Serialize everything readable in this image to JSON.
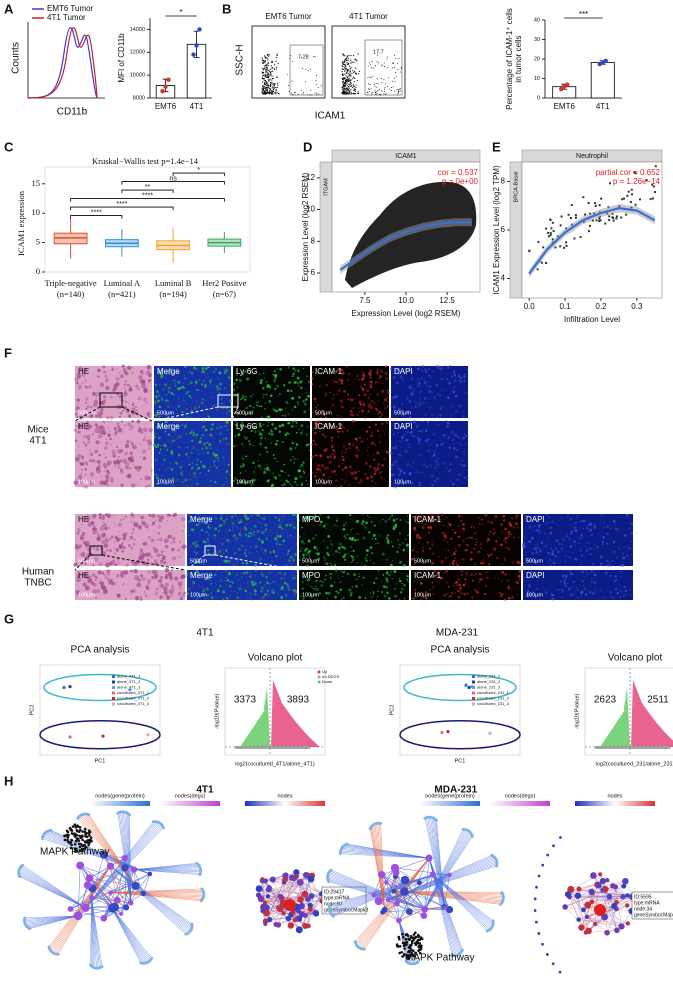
{
  "A": {
    "label": "A",
    "histogram": {
      "legend": [
        {
          "name": "EMT6 Tumor",
          "color": "#3b3bd6"
        },
        {
          "name": "4T1 Tumor",
          "color": "#c4202a"
        }
      ],
      "ylabel": "Counts",
      "xlabel": "CD11b"
    },
    "bar_chart": {
      "type": "bar",
      "ylabel": "MFI of CD11b",
      "categories": [
        "EMT6",
        "4T1"
      ],
      "colors": [
        "#d9332b",
        "#3146c4"
      ],
      "values": [
        9100,
        12700
      ],
      "errors": [
        550,
        1150
      ],
      "points": [
        [
          8600,
          9000,
          9600
        ],
        [
          11800,
          12600,
          14000
        ]
      ],
      "ylim": [
        8000,
        15000
      ],
      "yticks": [
        8000,
        10000,
        12000,
        14000
      ],
      "significance": "*"
    }
  },
  "B": {
    "label": "B",
    "flow": [
      {
        "title": "EMT6 Tumor",
        "gate": "7.28"
      },
      {
        "title": "4T1  Tumor",
        "gate": "17.7"
      }
    ],
    "flow_ylabel": "SSC-H",
    "flow_xlabel": "ICAM1",
    "bar_chart": {
      "type": "bar",
      "ylabel": [
        "Percentage of ICAM-1⁺ cells",
        "in tumor cells"
      ],
      "categories": [
        "EMT6",
        "4T1"
      ],
      "colors": [
        "#d9332b",
        "#3146c4"
      ],
      "values": [
        5.8,
        18.2
      ],
      "errors": [
        1.3,
        0.9
      ],
      "points": [
        [
          4.6,
          6,
          6.9
        ],
        [
          17.4,
          18.2,
          19
        ]
      ],
      "ylim": [
        0,
        40
      ],
      "yticks": [
        0,
        10,
        20,
        30,
        40
      ],
      "significance": "***"
    }
  },
  "C": {
    "label": "C",
    "type": "box",
    "title": "Kruskal−Wallis test p=1.4e−14",
    "ylabel": "ICAM1 expression",
    "categories": [
      "Triple-negative",
      "Luminal A",
      "Luminal B",
      "Her2 Positve"
    ],
    "counts": [
      "(n=140)",
      "(n=421)",
      "(n=194)",
      "(n=67)"
    ],
    "colors": [
      "#d9532a",
      "#2d8fd6",
      "#f0a030",
      "#3aa860"
    ],
    "median": [
      5.8,
      4.9,
      4.5,
      5.0
    ],
    "q1": [
      4.8,
      4.3,
      3.8,
      4.4
    ],
    "q3": [
      6.6,
      5.5,
      5.3,
      5.6
    ],
    "whisker_low": [
      2.3,
      2.6,
      1.6,
      3.2
    ],
    "whisker_high": [
      9.3,
      7.3,
      7.5,
      6.8
    ],
    "ylim": [
      0,
      16.5
    ],
    "yticks": [
      0,
      5,
      10,
      15
    ],
    "comparisons": [
      {
        "groups": [
          0,
          1
        ],
        "label": "****"
      },
      {
        "groups": [
          0,
          2
        ],
        "label": "****"
      },
      {
        "groups": [
          0,
          3
        ],
        "label": "****"
      },
      {
        "groups": [
          1,
          2
        ],
        "label": "**"
      },
      {
        "groups": [
          1,
          3
        ],
        "label": "ns"
      },
      {
        "groups": [
          2,
          3
        ],
        "label": "*"
      }
    ]
  },
  "D": {
    "label": "D",
    "type": "scatter",
    "strip": "ICAM1",
    "side_strip": "ITGAM",
    "ylabel": "Expression Level (log2 RSEM)",
    "xlabel": "Expression Level (log2 RSEM)",
    "annotations": [
      "cor = 0.537",
      "p = 0e+00"
    ],
    "xlim": [
      5.5,
      14.5
    ],
    "ylim": [
      4.8,
      13
    ],
    "xticks": [
      7.5,
      {
        "value": 10,
        "label": "10.0"
      },
      12.5
    ],
    "yticks": [
      6,
      8,
      10,
      12
    ],
    "fit": {
      "x": [
        6,
        7,
        8,
        9,
        10,
        11,
        12,
        13,
        14
      ],
      "y": [
        6.2,
        6.9,
        7.6,
        8.2,
        8.6,
        8.9,
        9.1,
        9.2,
        9.2
      ]
    }
  },
  "E": {
    "label": "E",
    "type": "scatter",
    "strip": "Neutrophil",
    "side_strip": "BRCA-Basal",
    "ylabel": "ICAM1 Expression Level (log2 TPM)",
    "xlabel": "Infiltration Level",
    "annotations": [
      "partial.cor = 0.652",
      "p = 1.26e−14"
    ],
    "xlim": [
      -0.02,
      0.37
    ],
    "ylim": [
      3.2,
      8.8
    ],
    "xticks": [
      {
        "value": 0,
        "label": "0.0"
      },
      0.1,
      0.2,
      0.3
    ],
    "yticks": [
      4,
      6,
      8
    ],
    "fit": {
      "x": [
        0,
        0.05,
        0.1,
        0.15,
        0.2,
        0.25,
        0.3,
        0.35
      ],
      "y": [
        4.2,
        5.2,
        5.9,
        6.4,
        6.7,
        6.9,
        6.8,
        6.4
      ]
    }
  },
  "F": {
    "label": "F",
    "groups": [
      {
        "name": [
          "Mice",
          "4T1"
        ],
        "rows": [
          [
            {
              "stain": "HE",
              "scale": "500μm"
            },
            {
              "stain": "Merge",
              "scale": "500μm"
            },
            {
              "stain": "Ly-6G",
              "scale": "500μm"
            },
            {
              "stain": "ICAM-1",
              "scale": "500μm"
            },
            {
              "stain": "DAPI",
              "scale": "500μm"
            }
          ],
          [
            {
              "stain": "HE",
              "scale": "100μm"
            },
            {
              "stain": "Merge",
              "scale": "100μm"
            },
            {
              "stain": "Ly-6G",
              "scale": "100μm"
            },
            {
              "stain": "ICAM-1",
              "scale": "100μm"
            },
            {
              "stain": "DAPI",
              "scale": "100μm"
            }
          ]
        ]
      },
      {
        "name": [
          "Human",
          "TNBC"
        ],
        "rows": [
          [
            {
              "stain": "HE",
              "scale": "500μm"
            },
            {
              "stain": "Merge",
              "scale": "500μm"
            },
            {
              "stain": "MPO",
              "scale": "500μm"
            },
            {
              "stain": "ICAM-1",
              "scale": "500μm"
            },
            {
              "stain": "DAPI",
              "scale": "500μm"
            }
          ],
          [
            {
              "stain": "HE",
              "scale": "100μm"
            },
            {
              "stain": "Merge",
              "scale": "100μm"
            },
            {
              "stain": "MPO",
              "scale": "100μm"
            },
            {
              "stain": "ICAM-1",
              "scale": "100μm"
            },
            {
              "stain": "DAPI",
              "scale": "100μm"
            }
          ]
        ]
      }
    ]
  },
  "G": {
    "label": "G",
    "datasets": [
      {
        "title": "4T1",
        "pca": {
          "title": "PCA analysis",
          "xlabel": "PC1",
          "ylabel": "PC2",
          "xlim": [
            -1,
            1
          ],
          "ylim": [
            -1,
            1
          ],
          "series": [
            {
              "name": "alone_4T1_1",
              "color": "#2f6fd0",
              "x": -0.6,
              "y": 0.5
            },
            {
              "name": "alone_4T1_2",
              "color": "#1a3fb0",
              "x": -0.5,
              "y": 0.52
            },
            {
              "name": "alone_4T1_3",
              "color": "#5aa0e0",
              "x": 0.5,
              "y": 0.45
            },
            {
              "name": "cocultured_4T1_1",
              "color": "#e07070",
              "x": -0.5,
              "y": -0.6
            },
            {
              "name": "cocultured_4T1_2",
              "color": "#c03030",
              "x": 0.05,
              "y": -0.58
            },
            {
              "name": "cocultured_4T1_3",
              "color": "#f0a0a0",
              "x": 0.8,
              "y": -0.55
            }
          ]
        },
        "volcano": {
          "title": "Volcano plot",
          "legend": [
            {
              "name": "Up",
              "color": "#e0306a"
            },
            {
              "name": "no-DEGS",
              "color": "#aaaaaa"
            },
            {
              "name": "Down",
              "color": "#5ac85a"
            }
          ],
          "down": 3373,
          "up": 3893,
          "xlabel": "log2(cocultured_4T1/alone_4T1)",
          "ylabel": "-log10(Pvalue)"
        }
      },
      {
        "title": "MDA-231",
        "pca": {
          "title": "PCA analysis",
          "xlabel": "PC1",
          "ylabel": "PC2",
          "xlim": [
            -1,
            1
          ],
          "ylim": [
            -1,
            1
          ],
          "series": [
            {
              "name": "alone_231_1",
              "color": "#2f6fd0",
              "x": 0.1,
              "y": 0.55
            },
            {
              "name": "alone_231_2",
              "color": "#1a3fb0",
              "x": 0.15,
              "y": 0.5
            },
            {
              "name": "alone_231_3",
              "color": "#5aa0e0",
              "x": 0.2,
              "y": 0.52
            },
            {
              "name": "cocultured_231_1",
              "color": "#e07070",
              "x": -0.3,
              "y": -0.5
            },
            {
              "name": "cocultured_231_2",
              "color": "#c03030",
              "x": -0.2,
              "y": -0.48
            },
            {
              "name": "cocultured_231_3",
              "color": "#f0a0a0",
              "x": 0.5,
              "y": -0.52
            }
          ]
        },
        "volcano": {
          "title": "Volcano plot",
          "legend": [
            {
              "name": "Up",
              "color": "#e0306a"
            },
            {
              "name": "no-DEGS",
              "color": "#aaaaaa"
            },
            {
              "name": "Down",
              "color": "#5ac85a"
            }
          ],
          "down": 2623,
          "up": 2511,
          "xlabel": "log2(cocultured_231/alone_231)",
          "ylabel": "-log10(Pvalue)"
        }
      }
    ]
  },
  "H": {
    "label": "H",
    "networks": [
      {
        "title": "4T1",
        "pathway": "MAPK Pathway",
        "legend": [
          "nodes(gene(protein)",
          "nodes(degs)",
          "nodes"
        ],
        "info": [
          "ID:29417",
          "type:mRNA",
          "node:60",
          "geneSymbol:Mapk3"
        ]
      },
      {
        "title": "MDA-231",
        "pathway": "MAPK Pathway",
        "legend": [
          "nodes(gene(protein)",
          "nodes(degs)",
          "nodes"
        ],
        "info": [
          "ID:5595",
          "type:mRNA",
          "node:34",
          "geneSymbol:Mapk3"
        ]
      }
    ]
  }
}
